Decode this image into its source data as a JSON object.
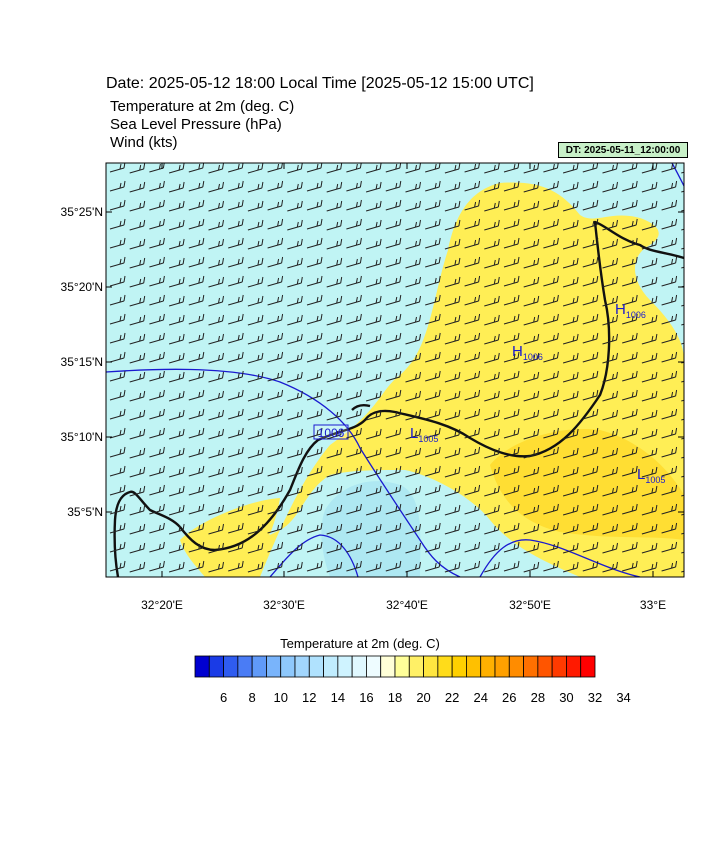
{
  "header": {
    "title": "Date: 2025-05-12  18:00 Local Time [2025-05-12  15:00 UTC]",
    "fields": [
      "Temperature at 2m   (deg. C)",
      "Sea Level Pressure   (hPa)",
      "Wind   (kts)"
    ],
    "dt_badge": "DT: 2025-05-11_12:00:00"
  },
  "axes": {
    "lat_labels": [
      "35°25'N",
      "35°20'N",
      "35°15'N",
      "35°10'N",
      "35°5'N"
    ],
    "lon_labels": [
      "32°20'E",
      "32°30'E",
      "32°40'E",
      "32°50'E",
      "33°E"
    ]
  },
  "pressure_labels": {
    "highs": [
      {
        "text": "H",
        "sub": "1006"
      },
      {
        "text": "H",
        "sub": "1006"
      }
    ],
    "lows": [
      {
        "text": "L",
        "sub": "1005"
      },
      {
        "text": "L",
        "sub": "1005"
      }
    ],
    "contour": "1006"
  },
  "colorbar": {
    "title": "Temperature at 2m  (deg. C)",
    "labels": [
      "6",
      "8",
      "10",
      "12",
      "14",
      "16",
      "18",
      "20",
      "22",
      "24",
      "26",
      "28",
      "30",
      "32",
      "34"
    ],
    "colors": [
      "#0000d0",
      "#1a3be6",
      "#2f5cf0",
      "#4a7cf5",
      "#609af8",
      "#79b4fb",
      "#8ec8fc",
      "#a2d6fd",
      "#b0e2fe",
      "#c0ecfe",
      "#cff3ff",
      "#e0f8ff",
      "#eefcff",
      "#ffffd8",
      "#ffff99",
      "#fff066",
      "#ffe640",
      "#ffdc1a",
      "#ffd000",
      "#ffc000",
      "#ffb000",
      "#ffa000",
      "#ff8c00",
      "#ff7000",
      "#ff5500",
      "#ff3a00",
      "#ff1a00",
      "#ff0000"
    ]
  }
}
